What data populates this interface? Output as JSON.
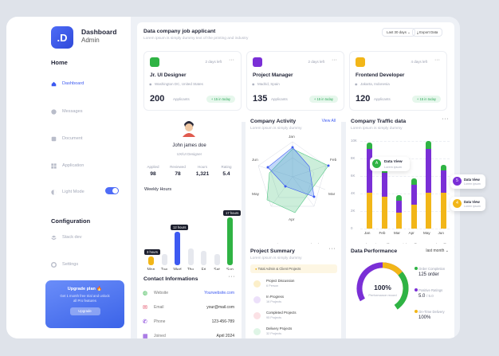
{
  "sidebar": {
    "logo_letter": ".D",
    "app_title": "Dashboard",
    "app_subtitle": "Admin",
    "home_heading": "Home",
    "config_heading": "Configuration",
    "items": [
      {
        "label": "Dashboard",
        "icon": "home-icon"
      },
      {
        "label": "Messages",
        "icon": "message-icon"
      },
      {
        "label": "Document",
        "icon": "document-icon"
      },
      {
        "label": "Application",
        "icon": "grid-icon"
      },
      {
        "label": "Light Mode",
        "icon": "sun-icon"
      }
    ],
    "config_items": [
      {
        "label": "Stack dev",
        "icon": "stack-icon"
      },
      {
        "label": "Settings",
        "icon": "gear-icon"
      }
    ],
    "upgrade": {
      "title": "Upgrade plan 🔥",
      "desc": "Get 1 month free trial and unlock all Pro features",
      "button": "Upgrade"
    }
  },
  "jobs": {
    "title": "Data company job applicant",
    "subtitle": "Lorem ipsum is simply dummy text of the printing and industry",
    "range": "Last 30 days",
    "export": "Export Data",
    "cards": [
      {
        "title": "Jr. UI Designer",
        "location": "Washington DC, United States",
        "days": "2 days left",
        "count": "200",
        "applicants": "Applicants",
        "badge": "+ 15 in today",
        "color": "#2fb344"
      },
      {
        "title": "Project Manager",
        "location": "Madrid, Spain",
        "days": "2 days left",
        "count": "135",
        "applicants": "Applicants",
        "badge": "+ 15 in today",
        "color": "#7a2fd6"
      },
      {
        "title": "Frontend Developer",
        "location": "Jakarta, Indonesia",
        "days": "4 days left",
        "count": "120",
        "applicants": "Applicants",
        "badge": "+ 15 in today",
        "color": "#f2b618"
      }
    ]
  },
  "profile": {
    "name": "John james doe",
    "role": "UX/UI Designer",
    "stats": [
      {
        "label": "Applied",
        "value": "98"
      },
      {
        "label": "Reviewed",
        "value": "78"
      },
      {
        "label": "Hours",
        "value": "1,321"
      },
      {
        "label": "Rating",
        "value": "5.4"
      }
    ],
    "weekly_title": "Weekly Hours",
    "days": [
      "Mon",
      "Tue",
      "Wed",
      "Thu",
      "Fri",
      "Sat",
      "Sun"
    ],
    "hours": [
      3,
      4,
      12,
      6,
      5,
      4,
      17
    ],
    "tags": [
      "3 hours",
      "12 hours",
      "17 hours"
    ]
  },
  "activity": {
    "title": "Company Activity",
    "subtitle": "Lorem ipsum is simply dummy",
    "view_all": "View All",
    "axes": [
      "Jan",
      "Feb",
      "Mar",
      "Apr",
      "May",
      "Jun"
    ],
    "legend": [
      "Active",
      "Completed"
    ]
  },
  "traffic": {
    "title": "Company Traffic data",
    "subtitle": "Lorem ipsum is simply dummy",
    "y_ticks": [
      "10K",
      "8K",
      "6K",
      "4K",
      "2K",
      "0"
    ],
    "months": [
      "Jan",
      "Feb",
      "Mar",
      "Apr",
      "May",
      "Jun"
    ],
    "legend": [
      "Search Engine Traffic",
      "Link Traffic",
      "Internal Traffic"
    ],
    "series_colors": [
      "#f2b618",
      "#7a2fd6",
      "#2fb344"
    ],
    "tooltip_label": "Data View",
    "tooltip_sub": "Lorem ipsum",
    "float_labels": [
      "Data View",
      "Data View"
    ],
    "float_subs": [
      "Lorem ipsum",
      "Lorem ipsum"
    ],
    "float_values": [
      "5",
      "4"
    ]
  },
  "contact": {
    "title": "Contact Informations",
    "rows": [
      {
        "label": "Website",
        "value": "Yourwebsite.com",
        "icon": "globe-icon"
      },
      {
        "label": "Email",
        "value": "your@mail.com",
        "icon": "mail-icon"
      },
      {
        "label": "Phone",
        "value": "123-456-789",
        "icon": "phone-icon"
      },
      {
        "label": "Joined",
        "value": "April 2024",
        "icon": "calendar-icon"
      }
    ]
  },
  "project": {
    "title": "Project Summary",
    "subtitle": "Lorem ipsum is simply dummy",
    "banner": "Total Admin & Client Projects",
    "rows": [
      {
        "title": "Project Discussion",
        "sub": "6 Person",
        "color": "#f2b618"
      },
      {
        "title": "In Progress",
        "sub": "16 Projects",
        "color": "#7a2fd6"
      },
      {
        "title": "Completed Projects",
        "sub": "95 Projects",
        "color": "#e0405a"
      },
      {
        "title": "Delivery Projects",
        "sub": "32 Projects",
        "color": "#2fb344"
      }
    ]
  },
  "performance": {
    "title": "Data Performance",
    "range": "last month",
    "center_value": "100%",
    "center_label": "Performance record",
    "items": [
      {
        "label": "Order Completion",
        "value": "125 order",
        "color": "#2fb344"
      },
      {
        "label": "Positive Ratings",
        "value": "5.0",
        "suffix": "/ 5.0",
        "color": "#7a2fd6"
      },
      {
        "label": "On-Time Delivery",
        "value": "100%",
        "color": "#f2b618"
      }
    ]
  }
}
